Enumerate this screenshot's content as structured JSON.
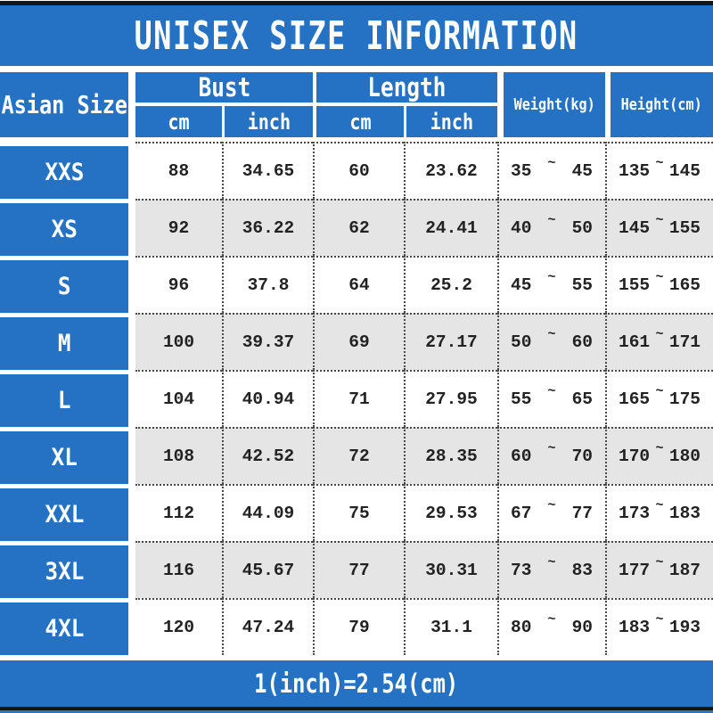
{
  "title": "UNISEX SIZE INFORMATION",
  "colors": {
    "accent_blue": "#2572c4",
    "row_alt_gray": "#e5e5e5",
    "edge_bar": "#161616"
  },
  "table": {
    "corner_header": "Asian Size",
    "group_bust": "Bust",
    "group_length": "Length",
    "sub_cm": "cm",
    "sub_inch": "inch",
    "weight_header": "Weight(kg)",
    "height_header": "Height(cm)",
    "range_separator": "~",
    "rows": [
      {
        "size": "XXS",
        "bust_cm": "88",
        "bust_inch": "34.65",
        "length_cm": "60",
        "length_inch": "23.62",
        "weight_low": "35",
        "weight_high": "45",
        "height_low": "135",
        "height_high": "145"
      },
      {
        "size": "XS",
        "bust_cm": "92",
        "bust_inch": "36.22",
        "length_cm": "62",
        "length_inch": "24.41",
        "weight_low": "40",
        "weight_high": "50",
        "height_low": "145",
        "height_high": "155"
      },
      {
        "size": "S",
        "bust_cm": "96",
        "bust_inch": "37.8",
        "length_cm": "64",
        "length_inch": "25.2",
        "weight_low": "45",
        "weight_high": "55",
        "height_low": "155",
        "height_high": "165"
      },
      {
        "size": "M",
        "bust_cm": "100",
        "bust_inch": "39.37",
        "length_cm": "69",
        "length_inch": "27.17",
        "weight_low": "50",
        "weight_high": "60",
        "height_low": "161",
        "height_high": "171"
      },
      {
        "size": "L",
        "bust_cm": "104",
        "bust_inch": "40.94",
        "length_cm": "71",
        "length_inch": "27.95",
        "weight_low": "55",
        "weight_high": "65",
        "height_low": "165",
        "height_high": "175"
      },
      {
        "size": "XL",
        "bust_cm": "108",
        "bust_inch": "42.52",
        "length_cm": "72",
        "length_inch": "28.35",
        "weight_low": "60",
        "weight_high": "70",
        "height_low": "170",
        "height_high": "180"
      },
      {
        "size": "XXL",
        "bust_cm": "112",
        "bust_inch": "44.09",
        "length_cm": "75",
        "length_inch": "29.53",
        "weight_low": "67",
        "weight_high": "77",
        "height_low": "173",
        "height_high": "183"
      },
      {
        "size": "3XL",
        "bust_cm": "116",
        "bust_inch": "45.67",
        "length_cm": "77",
        "length_inch": "30.31",
        "weight_low": "73",
        "weight_high": "83",
        "height_low": "177",
        "height_high": "187"
      },
      {
        "size": "4XL",
        "bust_cm": "120",
        "bust_inch": "47.24",
        "length_cm": "79",
        "length_inch": "31.1",
        "weight_low": "80",
        "weight_high": "90",
        "height_low": "183",
        "height_high": "193"
      }
    ]
  },
  "footer": {
    "note": "1(inch)=2.54(cm)"
  },
  "chart_data": {
    "type": "table",
    "title": "UNISEX SIZE INFORMATION",
    "columns": [
      "Asian Size",
      "Bust cm",
      "Bust inch",
      "Length cm",
      "Length inch",
      "Weight(kg)",
      "Height(cm)"
    ],
    "rows": [
      [
        "XXS",
        88,
        34.65,
        60,
        23.62,
        "35~45",
        "135~145"
      ],
      [
        "XS",
        92,
        36.22,
        62,
        24.41,
        "40~50",
        "145~155"
      ],
      [
        "S",
        96,
        37.8,
        64,
        25.2,
        "45~55",
        "155~165"
      ],
      [
        "M",
        100,
        39.37,
        69,
        27.17,
        "50~60",
        "161~171"
      ],
      [
        "L",
        104,
        40.94,
        71,
        27.95,
        "55~65",
        "165~175"
      ],
      [
        "XL",
        108,
        42.52,
        72,
        28.35,
        "60~70",
        "170~180"
      ],
      [
        "XXL",
        112,
        44.09,
        75,
        29.53,
        "67~77",
        "173~183"
      ],
      [
        "3XL",
        116,
        45.67,
        77,
        30.31,
        "73~83",
        "177~187"
      ],
      [
        "4XL",
        120,
        47.24,
        79,
        31.1,
        "80~90",
        "183~193"
      ]
    ],
    "note": "1(inch)=2.54(cm)",
    "layout": {
      "alt_row_shading": [
        1,
        3,
        5,
        7
      ],
      "header_color": "#2572c4"
    }
  }
}
